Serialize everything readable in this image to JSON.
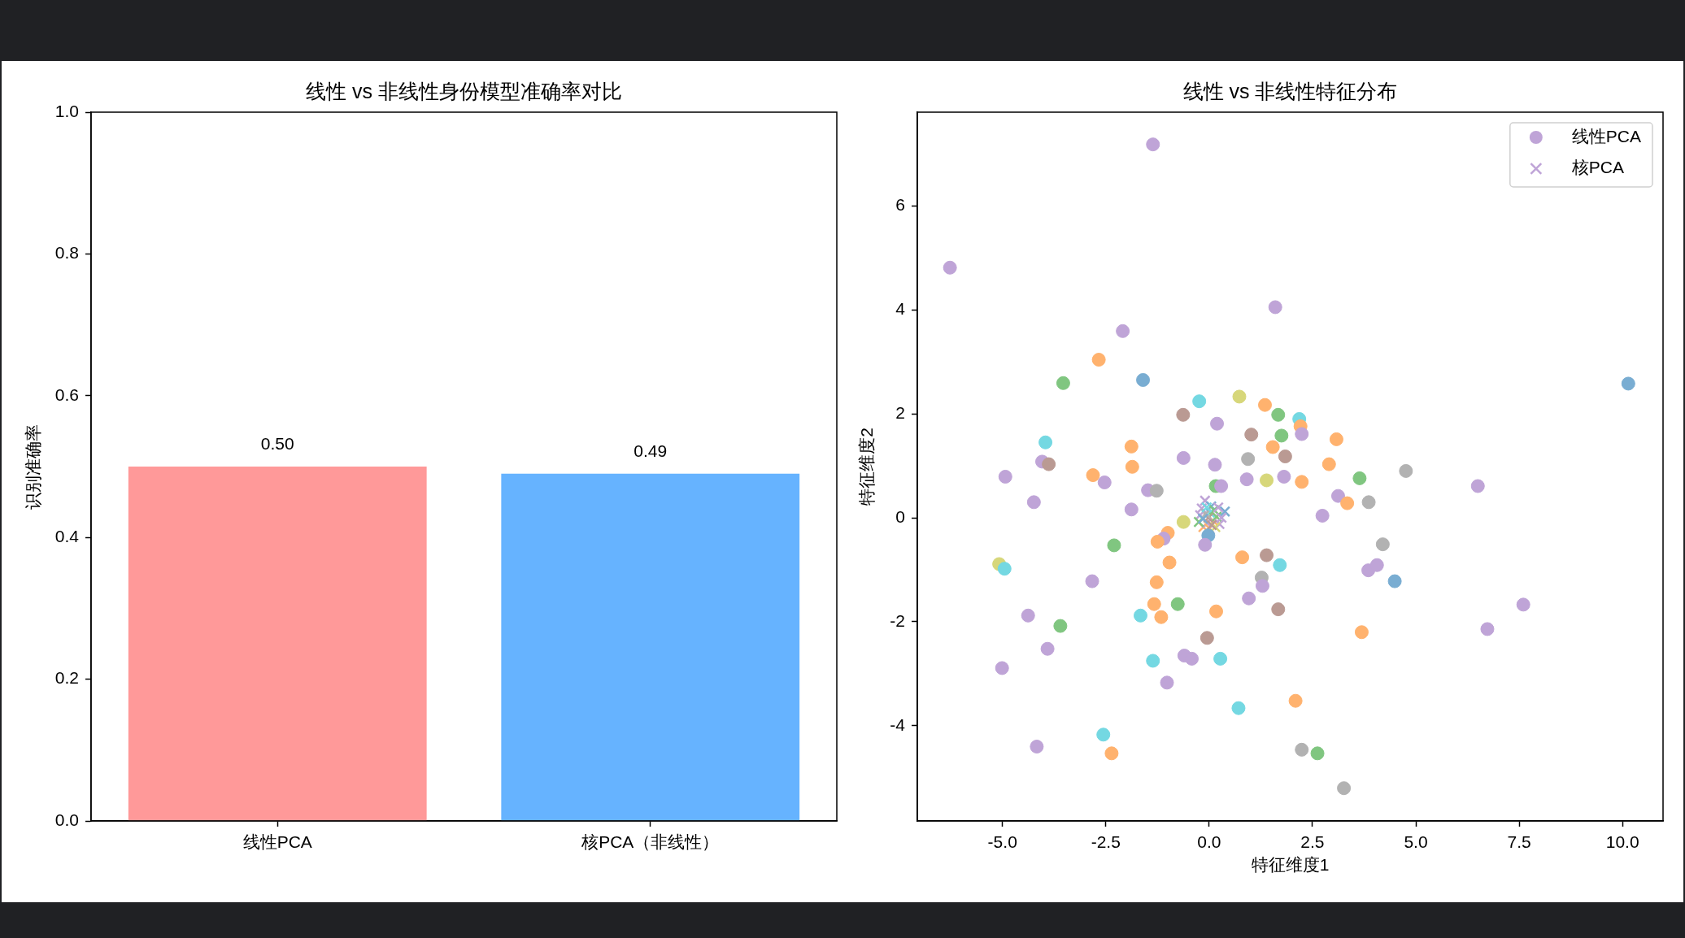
{
  "chart_data": [
    {
      "type": "bar",
      "title": "线性 vs 非线性身份模型准确率对比",
      "ylabel": "识别准确率",
      "categories": [
        "线性PCA",
        "核PCA（非线性）"
      ],
      "values": [
        0.5,
        0.49
      ],
      "colors": [
        "#ff9999",
        "#66b3ff"
      ],
      "value_labels": [
        "0.50",
        "0.49"
      ],
      "ylim": [
        0,
        1
      ],
      "yticks": [
        {
          "value": 0,
          "label": "0.0"
        },
        {
          "value": 0.2,
          "label": "0.2"
        },
        {
          "value": 0.4,
          "label": "0.4"
        },
        {
          "value": 0.6,
          "label": "0.6"
        },
        {
          "value": 0.8,
          "label": "0.8"
        },
        {
          "value": 1,
          "label": "1.0"
        }
      ]
    },
    {
      "type": "scatter",
      "title": "线性 vs 非线性特征分布",
      "xlabel": "特征维度1",
      "ylabel": "特征维度2",
      "xlim": [
        -7.06,
        10.98
      ],
      "ylim": [
        -5.83,
        7.8
      ],
      "xticks": [
        {
          "value": -5,
          "label": "-5.0"
        },
        {
          "value": -2.5,
          "label": "-2.5"
        },
        {
          "value": 0,
          "label": "0.0"
        },
        {
          "value": 2.5,
          "label": "2.5"
        },
        {
          "value": 5,
          "label": "5.0"
        },
        {
          "value": 7.5,
          "label": "7.5"
        },
        {
          "value": 10,
          "label": "10.0"
        }
      ],
      "yticks": [
        -4,
        -2,
        0,
        2,
        4,
        6
      ],
      "legend": "top right",
      "series": [
        {
          "name": "线性PCA",
          "color": "#bfa4d7",
          "marker": "circle",
          "x": [
            -1.36,
            -6.27,
            1.6,
            -2.09,
            -2.67,
            -1.6,
            -3.53,
            -0.24,
            0.73,
            1.35,
            1.67,
            -0.63,
            0.19,
            1.02,
            1.75,
            -3.96,
            -1.88,
            1.54,
            -0.62,
            0.14,
            0.94,
            1.84,
            -4.04,
            -3.88,
            -1.86,
            10.14,
            2.18,
            2.21,
            2.24,
            3.08,
            2.9,
            4.76,
            -4.93,
            -2.81,
            -2.53,
            -4.24,
            -1.48,
            -1.27,
            -1.88,
            0.16,
            0.29,
            0.91,
            1.39,
            1.81,
            -0.62,
            -1.0,
            -1.1,
            -1.25,
            -0.02,
            -0.1,
            -2.3,
            -0.96,
            0.8,
            1.39,
            1.71,
            -5.08,
            -4.95,
            -2.83,
            -1.27,
            1.27,
            1.29,
            0.96,
            -1.33,
            -0.76,
            -1.66,
            -1.16,
            0.17,
            1.67,
            -4.38,
            -3.6,
            -3.91,
            -0.05,
            -0.6,
            -0.42,
            -1.36,
            0.27,
            -5.01,
            -1.02,
            0.71,
            2.09,
            -2.56,
            -4.17,
            -2.36,
            2.24,
            3.64,
            6.5,
            3.12,
            3.34,
            3.86,
            2.74,
            4.2,
            3.85,
            4.06,
            4.49,
            7.6,
            6.73,
            3.69,
            2.24,
            2.62,
            3.26
          ],
          "values": [
            7.18,
            4.81,
            4.05,
            3.59,
            3.04,
            2.65,
            2.59,
            2.24,
            2.33,
            2.17,
            1.98,
            1.98,
            1.81,
            1.6,
            1.58,
            1.45,
            1.37,
            1.36,
            1.15,
            1.02,
            1.13,
            1.18,
            1.08,
            1.03,
            0.98,
            2.58,
            1.9,
            1.76,
            1.61,
            1.51,
            1.03,
            0.9,
            0.79,
            0.82,
            0.68,
            0.3,
            0.53,
            0.52,
            0.16,
            0.61,
            0.61,
            0.74,
            0.72,
            0.79,
            -0.08,
            -0.29,
            -0.4,
            -0.46,
            -0.34,
            -0.52,
            -0.53,
            -0.86,
            -0.76,
            -0.72,
            -0.91,
            -0.89,
            -0.98,
            -1.22,
            -1.24,
            -1.15,
            -1.31,
            -1.55,
            -1.66,
            -1.66,
            -1.88,
            -1.91,
            -1.8,
            -1.76,
            -1.88,
            -2.08,
            -2.52,
            -2.31,
            -2.65,
            -2.71,
            -2.75,
            -2.71,
            -2.89,
            -3.17,
            -3.66,
            -3.52,
            -4.17,
            -4.4,
            -4.53,
            0.69,
            0.76,
            0.61,
            0.42,
            0.28,
            0.3,
            0.04,
            -0.51,
            -1.01,
            -0.91,
            -1.22,
            -1.67,
            -2.14,
            -2.2,
            -4.46,
            -4.53,
            -5.2
          ],
          "colors": [
            "#bfa4d7",
            "#bfa4d7",
            "#bfa4d7",
            "#bfa4d7",
            "#ffb26e",
            "#79add2",
            "#80c680",
            "#74d8e2",
            "#d7d77a",
            "#ffb26e",
            "#80c680",
            "#ba9a93",
            "#bfa4d7",
            "#ba9a93",
            "#80c680",
            "#74d8e2",
            "#ffb26e",
            "#ffb26e",
            "#bfa4d7",
            "#bfa4d7",
            "#b2b2b2",
            "#ba9a93",
            "#bfa4d7",
            "#ba9a93",
            "#ffb26e",
            "#79add2",
            "#74d8e2",
            "#ffb26e",
            "#bfa4d7",
            "#ffb26e",
            "#ffb26e",
            "#b2b2b2",
            "#bfa4d7",
            "#ffb26e",
            "#bfa4d7",
            "#bfa4d7",
            "#bfa4d7",
            "#b2b2b2",
            "#bfa4d7",
            "#80c680",
            "#bfa4d7",
            "#bfa4d7",
            "#d7d77a",
            "#bfa4d7",
            "#d7d77a",
            "#ffb26e",
            "#bfa4d7",
            "#ffb26e",
            "#79add2",
            "#bfa4d7",
            "#80c680",
            "#ffb26e",
            "#ffb26e",
            "#ba9a93",
            "#74d8e2",
            "#d7d77a",
            "#74d8e2",
            "#bfa4d7",
            "#ffb26e",
            "#b2b2b2",
            "#bfa4d7",
            "#bfa4d7",
            "#ffb26e",
            "#80c680",
            "#74d8e2",
            "#ffb26e",
            "#ffb26e",
            "#ba9a93",
            "#bfa4d7",
            "#80c680",
            "#bfa4d7",
            "#ba9a93",
            "#bfa4d7",
            "#bfa4d7",
            "#74d8e2",
            "#74d8e2",
            "#bfa4d7",
            "#bfa4d7",
            "#74d8e2",
            "#ffb26e",
            "#74d8e2",
            "#bfa4d7",
            "#ffb26e",
            "#ffb26e",
            "#80c680",
            "#bfa4d7",
            "#bfa4d7",
            "#ffb26e",
            "#b2b2b2",
            "#bfa4d7",
            "#b2b2b2",
            "#bfa4d7",
            "#bfa4d7",
            "#79add2",
            "#bfa4d7",
            "#bfa4d7",
            "#ffb26e",
            "#b2b2b2",
            "#80c680",
            "#b2b2b2"
          ]
        },
        {
          "name": "核PCA",
          "color": "#bfa4d7",
          "marker": "cross",
          "x": [
            -0.1,
            0.38,
            -0.14,
            0.1,
            0.02,
            0.18,
            -0.22,
            -0.05,
            0.25,
            -0.18,
            0.05,
            -0.02,
            0.12,
            -0.25,
            0.0,
            0.22,
            -0.08,
            0.15,
            -0.15,
            0.3,
            0.06,
            -0.06
          ],
          "values": [
            0.33,
            0.12,
            -0.18,
            -0.06,
            0.1,
            0.02,
            0.05,
            -0.1,
            -0.12,
            0.18,
            0.22,
            0.0,
            0.15,
            -0.08,
            -0.2,
            0.2,
            0.08,
            -0.18,
            -0.02,
            0.0,
            -0.14,
            0.2
          ],
          "colors": [
            "#bfa4d7",
            "#79add2",
            "#ffb26e",
            "#ffb26e",
            "#74d8e2",
            "#80c680",
            "#bfa4d7",
            "#bfa4d7",
            "#bfa4d7",
            "#bfa4d7",
            "#79add2",
            "#ba9a93",
            "#80c680",
            "#80c680",
            "#ffb26e",
            "#bfa4d7",
            "#b2b2b2",
            "#d7d77a",
            "#79add2",
            "#bfa4d7",
            "#ba9a93",
            "#74d8e2"
          ]
        }
      ]
    }
  ]
}
